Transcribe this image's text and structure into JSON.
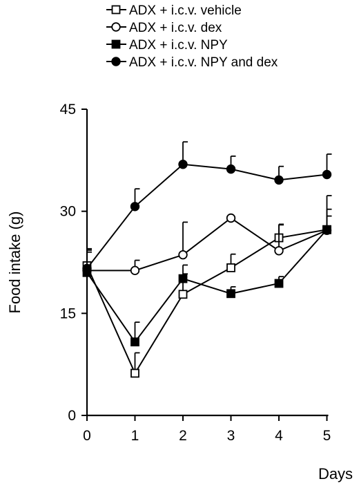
{
  "chart_data": {
    "type": "line",
    "xlabel": "Days",
    "ylabel": "Food intake (g)",
    "x": [
      0,
      1,
      2,
      3,
      4,
      5
    ],
    "xticks": [
      "0",
      "1",
      "2",
      "3",
      "4",
      "5"
    ],
    "yticks": [
      "0",
      "15",
      "30",
      "45"
    ],
    "ylim": [
      0,
      45
    ],
    "xlim": [
      0,
      5
    ],
    "grid": false,
    "legend_position": "top",
    "series": [
      {
        "name": "ADX + i.c.v. vehicle",
        "marker": "square-open",
        "values": [
          22.0,
          6.2,
          17.8,
          21.7,
          26.1,
          27.3
        ],
        "errors": [
          2.3,
          3.0,
          3.0,
          2.0,
          2.0,
          3.0
        ]
      },
      {
        "name": "ADX + i.c.v. dex",
        "marker": "circle-open",
        "values": [
          21.3,
          21.3,
          23.6,
          29.0,
          24.2,
          27.2
        ],
        "errors": [
          3.0,
          1.5,
          4.8,
          0.0,
          3.8,
          5.1
        ]
      },
      {
        "name": "ADX + i.c.v. NPY",
        "marker": "square-filled",
        "values": [
          21.0,
          10.8,
          20.1,
          17.9,
          19.4,
          27.3
        ],
        "errors": [
          3.5,
          2.9,
          2.0,
          1.0,
          1.0,
          2.0
        ]
      },
      {
        "name": "ADX + i.c.v. NPY and dex",
        "marker": "circle-filled",
        "values": [
          21.6,
          30.7,
          36.9,
          36.2,
          34.6,
          35.4
        ],
        "errors": [
          2.4,
          2.6,
          3.3,
          1.9,
          2.0,
          3.0
        ]
      }
    ]
  }
}
